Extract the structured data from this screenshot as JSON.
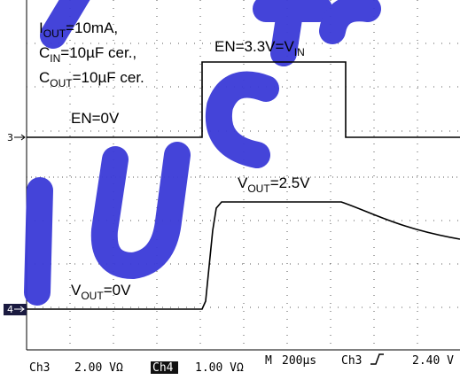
{
  "conditions": [
    {
      "main": "I",
      "sub": "OUT",
      "rest": "=10mA,"
    },
    {
      "main": "C",
      "sub": "IN",
      "rest": "=10µF cer.,"
    },
    {
      "main": "C",
      "sub": "OUT",
      "rest": "=10µF cer."
    }
  ],
  "labels": {
    "en_high": {
      "main": "EN=3.3V=V",
      "sub": "IN"
    },
    "en_low": "EN=0V",
    "vout_high": {
      "main": "V",
      "sub": "OUT",
      "rest": "=2.5V"
    },
    "vout_low": {
      "main": "V",
      "sub": "OUT",
      "rest": "=0V"
    }
  },
  "markers": {
    "ch3": "3",
    "ch4": "4"
  },
  "status": {
    "ch3": "Ch3",
    "ch3_scale": "2.00 VΩ",
    "ch4": "Ch4",
    "ch4_scale": "1.00 VΩ",
    "mode": "M",
    "timebase": "200µs",
    "trigger_source": "Ch3",
    "trigger_level": "2.40 V"
  }
}
